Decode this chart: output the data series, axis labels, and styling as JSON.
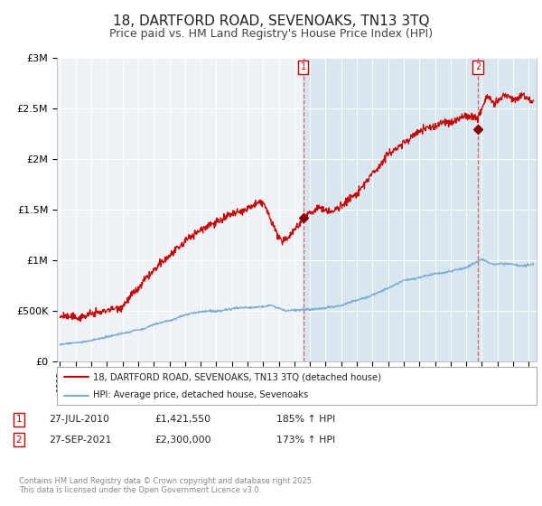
{
  "title": "18, DARTFORD ROAD, SEVENOAKS, TN13 3TQ",
  "subtitle": "Price paid vs. HM Land Registry's House Price Index (HPI)",
  "title_fontsize": 11,
  "subtitle_fontsize": 9,
  "background_color": "#ffffff",
  "plot_bg_color": "#eef2f7",
  "highlight_bg_color": "#d8e6f0",
  "grid_color": "#ffffff",
  "red_line_color": "#cc0000",
  "blue_line_color": "#7aadd4",
  "annotation1": {
    "label": "1",
    "date_year": 2010.57,
    "value": 1421550,
    "date_str": "27-JUL-2010",
    "price_str": "£1,421,550",
    "hpi_str": "185% ↑ HPI"
  },
  "annotation2": {
    "label": "2",
    "date_year": 2021.74,
    "value": 2300000,
    "date_str": "27-SEP-2021",
    "price_str": "£2,300,000",
    "hpi_str": "173% ↑ HPI"
  },
  "legend1_label": "18, DARTFORD ROAD, SEVENOAKS, TN13 3TQ (detached house)",
  "legend2_label": "HPI: Average price, detached house, Sevenoaks",
  "footer": "Contains HM Land Registry data © Crown copyright and database right 2025.\nThis data is licensed under the Open Government Licence v3.0.",
  "ylim": [
    0,
    3000000
  ],
  "xlim_start": 1994.8,
  "xlim_end": 2025.5,
  "yticks": [
    0,
    500000,
    1000000,
    1500000,
    2000000,
    2500000,
    3000000
  ],
  "ytick_labels": [
    "£0",
    "£500K",
    "£1M",
    "£1.5M",
    "£2M",
    "£2.5M",
    "£3M"
  ]
}
